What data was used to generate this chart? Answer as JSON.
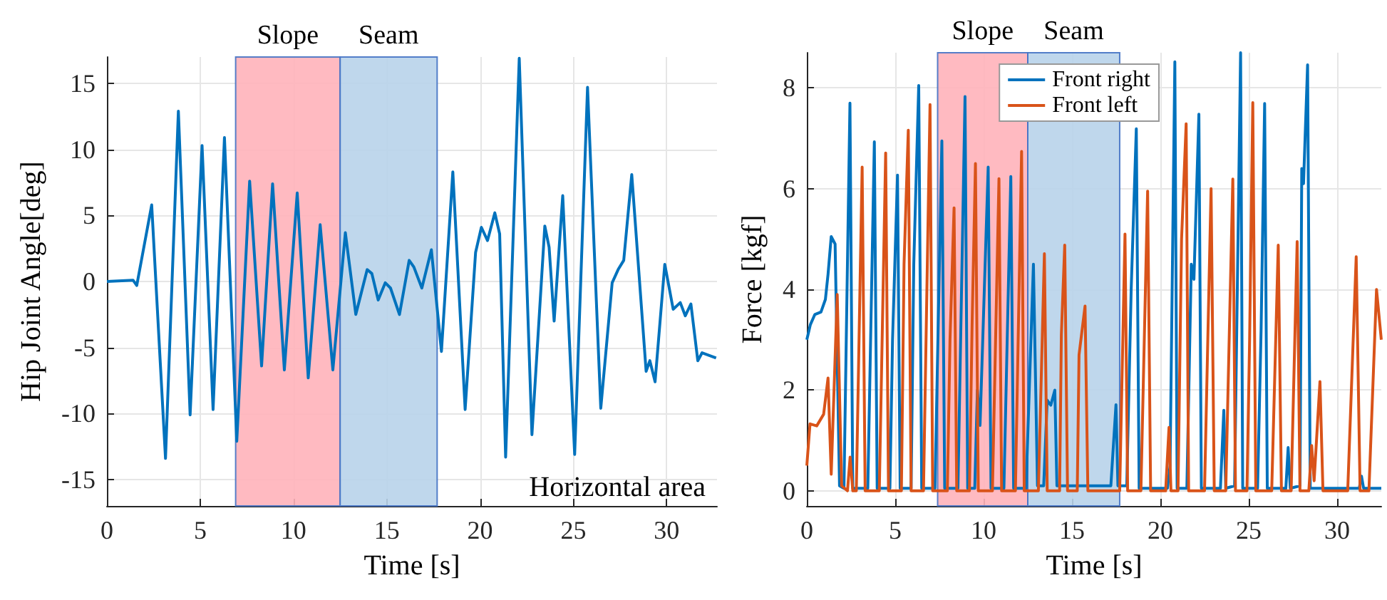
{
  "chart_data": [
    {
      "type": "line",
      "xlabel": "Time [s]",
      "ylabel": "Hip Joint Angle[deg]",
      "xlim": [
        0,
        32.7
      ],
      "xticks": [
        0,
        5,
        10,
        15,
        20,
        25,
        30
      ],
      "ylim": [
        -17,
        17
      ],
      "yticks": [
        -15,
        -10,
        -5,
        0,
        5,
        10,
        15
      ],
      "grid": true,
      "legend": false,
      "bands": [
        {
          "axis": "x",
          "from": 6.9,
          "to": 12.5,
          "label": "Slope",
          "color": "#ffb3ba"
        },
        {
          "axis": "x",
          "from": 12.5,
          "to": 17.7,
          "label": "Seam",
          "color": "#b8d3ea"
        }
      ],
      "annotations": [
        "Horizontal area"
      ],
      "series": [
        {
          "color": "#0072bd",
          "x": [
            0,
            1.4,
            1.6,
            2.4,
            3.14,
            3.83,
            4.46,
            5.1,
            5.69,
            6.3,
            6.96,
            7.65,
            8.29,
            8.88,
            9.51,
            10.2,
            10.79,
            11.43,
            12.11,
            12.78,
            13.34,
            13.95,
            14.2,
            14.54,
            14.92,
            15.2,
            15.68,
            16.2,
            16.45,
            16.88,
            17.39,
            17.93,
            18.54,
            19.2,
            19.76,
            20.07,
            20.4,
            20.79,
            21.05,
            21.37,
            22.1,
            22.78,
            23.47,
            23.7,
            23.97,
            24.43,
            25.07,
            25.76,
            26.47,
            27.08,
            27.4,
            27.7,
            28.13,
            28.9,
            29.1,
            29.38,
            29.9,
            30.35,
            30.73,
            31.0,
            31.3,
            31.67,
            31.9,
            32.65
          ],
          "values": [
            0,
            0.1,
            -0.3,
            5.8,
            -13.4,
            12.9,
            -10.1,
            10.3,
            -9.7,
            10.9,
            -12.1,
            7.6,
            -6.4,
            7.4,
            -6.7,
            6.7,
            -7.3,
            4.3,
            -6.7,
            3.7,
            -2.5,
            0.9,
            0.6,
            -1.4,
            -0.1,
            -0.5,
            -2.5,
            1.6,
            1.1,
            -0.5,
            2.4,
            -5.3,
            8.3,
            -9.7,
            2.2,
            4.1,
            3.1,
            5.2,
            3.6,
            -13.3,
            16.9,
            -11.6,
            4.2,
            2.6,
            -3.0,
            6.5,
            -13.1,
            14.7,
            -9.6,
            -0.1,
            0.9,
            1.6,
            8.1,
            -6.8,
            -6.0,
            -7.6,
            1.3,
            -2.1,
            -1.6,
            -2.6,
            -1.7,
            -6.0,
            -5.4,
            -5.8
          ]
        }
      ]
    },
    {
      "type": "line",
      "xlabel": "Time [s]",
      "ylabel": "Force [kgf]",
      "xlim": [
        0,
        32.5
      ],
      "xticks": [
        0,
        5,
        10,
        15,
        20,
        25,
        30
      ],
      "ylim": [
        -0.3,
        8.7
      ],
      "yticks": [
        0,
        2,
        4,
        6,
        8
      ],
      "grid": true,
      "legend": "top right",
      "bands": [
        {
          "axis": "x",
          "from": 7.4,
          "to": 12.5,
          "label": "Slope",
          "color": "#ffb3ba"
        },
        {
          "axis": "x",
          "from": 12.5,
          "to": 17.7,
          "label": "Seam",
          "color": "#b8d3ea"
        }
      ],
      "series": [
        {
          "name": "Front right",
          "color": "#0072bd",
          "x": [
            0,
            0.2,
            0.45,
            0.8,
            1.05,
            1.2,
            1.38,
            1.6,
            1.85,
            2.1,
            2.44,
            2.6,
            3.45,
            3.82,
            3.98,
            4.7,
            4.85,
            5.13,
            5.28,
            5.9,
            6.05,
            6.33,
            6.5,
            7.25,
            7.64,
            7.8,
            8.55,
            8.95,
            9.1,
            9.5,
            9.65,
            9.8,
            10.26,
            10.42,
            11.15,
            11.54,
            11.7,
            12.4,
            12.82,
            12.95,
            13.05,
            13.4,
            13.6,
            13.8,
            14.03,
            14.15,
            17.2,
            17.49,
            17.6,
            18.1,
            18.35,
            18.64,
            18.8,
            20.4,
            20.55,
            20.82,
            20.95,
            21.5,
            21.75,
            21.9,
            22.18,
            22.32,
            23.4,
            23.59,
            23.7,
            24.2,
            24.54,
            24.66,
            25.5,
            25.7,
            25.9,
            26.05,
            27.1,
            27.23,
            27.35,
            27.9,
            28.0,
            28.1,
            28.33,
            28.48,
            31.25,
            31.38,
            31.5,
            32.5
          ],
          "values": [
            3.0,
            3.3,
            3.5,
            3.55,
            3.8,
            4.3,
            5.05,
            4.9,
            0.1,
            0.05,
            7.7,
            0.05,
            0.05,
            6.93,
            0.05,
            0.05,
            3.0,
            6.27,
            0.05,
            0.05,
            4.5,
            8.05,
            0.05,
            0.05,
            6.95,
            0.05,
            0.05,
            7.83,
            0.05,
            0.05,
            2.0,
            1.3,
            6.43,
            0.05,
            0.05,
            6.24,
            0.05,
            0.05,
            4.5,
            2.0,
            0.1,
            0.1,
            1.8,
            1.7,
            2.0,
            0.1,
            0.1,
            1.71,
            0.1,
            0.1,
            4.0,
            7.19,
            0.05,
            0.05,
            0.5,
            8.52,
            0.05,
            0.05,
            4.5,
            4.2,
            7.48,
            0.05,
            0.05,
            1.6,
            0.05,
            0.1,
            8.7,
            0.05,
            0.05,
            3.2,
            7.69,
            0.05,
            0.05,
            0.86,
            0.05,
            0.1,
            6.4,
            6.1,
            8.46,
            0.05,
            0.05,
            0.29,
            0.05,
            0.05
          ]
        },
        {
          "name": "Front left",
          "color": "#d95319",
          "x": [
            0,
            0.18,
            0.56,
            0.95,
            1.2,
            1.38,
            1.72,
            1.97,
            2.3,
            2.45,
            2.6,
            2.8,
            3.13,
            3.3,
            4.1,
            4.46,
            4.62,
            5.35,
            5.5,
            5.74,
            5.9,
            6.6,
            6.97,
            7.12,
            7.95,
            8.1,
            8.33,
            8.48,
            9.2,
            9.35,
            9.54,
            9.7,
            10.5,
            10.87,
            11.02,
            11.8,
            12.15,
            12.3,
            13.1,
            13.44,
            13.6,
            14.3,
            14.4,
            14.59,
            14.75,
            15.3,
            15.4,
            15.74,
            15.9,
            17.7,
            18.0,
            18.15,
            18.9,
            19.28,
            19.45,
            20.3,
            20.49,
            20.6,
            21.0,
            21.2,
            21.46,
            21.6,
            22.5,
            22.87,
            23.05,
            23.7,
            24.1,
            24.25,
            24.9,
            25.05,
            25.23,
            25.4,
            26.3,
            26.67,
            26.85,
            27.4,
            27.74,
            27.9,
            28.4,
            28.56,
            28.7,
            29.03,
            29.2,
            30.6,
            31.08,
            31.3,
            31.8,
            32.23,
            32.5
          ],
          "values": [
            0.5,
            1.33,
            1.29,
            1.52,
            2.24,
            0.33,
            3.9,
            0.1,
            0,
            0.67,
            0,
            0,
            6.43,
            0,
            0,
            6.71,
            0,
            0,
            4.5,
            7.16,
            0,
            0,
            7.67,
            0,
            0,
            3.0,
            5.62,
            0,
            0,
            3.3,
            6.5,
            0,
            0,
            6.2,
            0,
            0,
            6.74,
            0,
            0,
            4.71,
            0,
            0,
            3.1,
            4.88,
            0,
            0,
            2.7,
            3.67,
            0,
            0,
            5.1,
            0,
            0,
            5.95,
            0,
            0,
            1.26,
            0,
            0,
            5.0,
            7.29,
            0,
            0,
            6.0,
            0,
            0,
            6.19,
            0,
            0,
            3.0,
            7.71,
            0,
            0,
            4.88,
            0,
            0,
            4.95,
            0,
            0,
            0.9,
            0.2,
            2.17,
            0,
            0,
            4.65,
            0,
            0,
            4.0,
            3.0
          ]
        }
      ]
    }
  ]
}
